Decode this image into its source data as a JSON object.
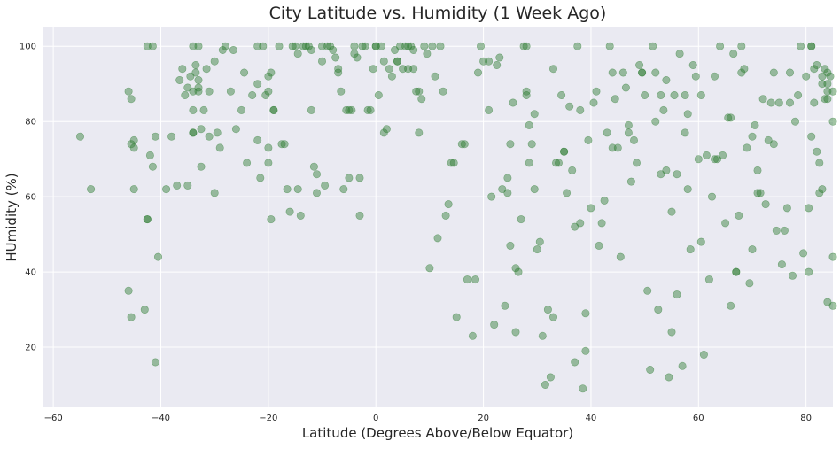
{
  "chart_data": {
    "type": "scatter",
    "title": "City Latitude vs. Humidity (1 Week Ago)",
    "xlabel": "Latitude (Degrees Above/Below Equator)",
    "ylabel": "HUmidity (%)",
    "xlim": [
      -62,
      85
    ],
    "ylim": [
      4,
      105
    ],
    "xticks": [
      -60,
      -40,
      -20,
      0,
      20,
      40,
      60,
      80
    ],
    "yticks": [
      20,
      40,
      60,
      80,
      100
    ],
    "grid": true,
    "background_color": "#EAEAF2",
    "marker_color": "#2E7D32",
    "marker_alpha": 0.45,
    "series": [
      {
        "points": [
          [
            -55,
            76
          ],
          [
            -53,
            62
          ],
          [
            -46,
            88
          ],
          [
            -45.5,
            86
          ],
          [
            -45.5,
            74
          ],
          [
            -45,
            73
          ],
          [
            -45,
            75
          ],
          [
            -45,
            62
          ],
          [
            -46,
            35
          ],
          [
            -45.5,
            28
          ],
          [
            -43,
            30
          ],
          [
            -42.5,
            100
          ],
          [
            -41.5,
            100
          ],
          [
            -42,
            71
          ],
          [
            -41.5,
            68
          ],
          [
            -41,
            76
          ],
          [
            -40.5,
            44
          ],
          [
            -41,
            16
          ],
          [
            -42.5,
            54
          ],
          [
            -42.5,
            54
          ],
          [
            -39,
            62
          ],
          [
            -38,
            76
          ],
          [
            -37,
            63
          ],
          [
            -36.5,
            91
          ],
          [
            -36,
            94
          ],
          [
            -35.5,
            87
          ],
          [
            -35,
            63
          ],
          [
            -35,
            89
          ],
          [
            -34.5,
            92
          ],
          [
            -34,
            100
          ],
          [
            -34,
            88
          ],
          [
            -34,
            83
          ],
          [
            -34,
            77
          ],
          [
            -34,
            77
          ],
          [
            -33.5,
            95
          ],
          [
            -33.5,
            93
          ],
          [
            -33,
            91
          ],
          [
            -33,
            89
          ],
          [
            -33,
            100
          ],
          [
            -33,
            88
          ],
          [
            -32.5,
            78
          ],
          [
            -32.5,
            68
          ],
          [
            -32,
            83
          ],
          [
            -31.5,
            94
          ],
          [
            -31,
            88
          ],
          [
            -31,
            76
          ],
          [
            -30,
            96
          ],
          [
            -30,
            61
          ],
          [
            -29.5,
            77
          ],
          [
            -29,
            73
          ],
          [
            -28.5,
            99
          ],
          [
            -28,
            100
          ],
          [
            -27,
            88
          ],
          [
            -26.5,
            99
          ],
          [
            -26,
            78
          ],
          [
            -25,
            83
          ],
          [
            -24.5,
            93
          ],
          [
            -24,
            69
          ],
          [
            -23,
            87
          ],
          [
            -22,
            100
          ],
          [
            -22,
            90
          ],
          [
            -22,
            75
          ],
          [
            -21.5,
            65
          ],
          [
            -21,
            100
          ],
          [
            -20.5,
            87
          ],
          [
            -20,
            88
          ],
          [
            -20,
            92
          ],
          [
            -19.5,
            93
          ],
          [
            -19,
            83
          ],
          [
            -19,
            83
          ],
          [
            -20,
            73
          ],
          [
            -20,
            69
          ],
          [
            -19.5,
            54
          ],
          [
            -18,
            100
          ],
          [
            -17.5,
            74
          ],
          [
            -17,
            74
          ],
          [
            -16.5,
            62
          ],
          [
            -16,
            56
          ],
          [
            -15.5,
            100
          ],
          [
            -15,
            100
          ],
          [
            -14.5,
            98
          ],
          [
            -14.5,
            62
          ],
          [
            -14,
            55
          ],
          [
            -13.5,
            100
          ],
          [
            -13,
            100
          ],
          [
            -12.5,
            100
          ],
          [
            -12,
            99
          ],
          [
            -12,
            83
          ],
          [
            -11.5,
            68
          ],
          [
            -11,
            66
          ],
          [
            -11,
            61
          ],
          [
            -10,
            100
          ],
          [
            -10,
            96
          ],
          [
            -9.5,
            63
          ],
          [
            -9,
            100
          ],
          [
            -8.5,
            100
          ],
          [
            -8,
            99
          ],
          [
            -7.5,
            97
          ],
          [
            -7,
            93
          ],
          [
            -7,
            94
          ],
          [
            -6.5,
            88
          ],
          [
            -6,
            62
          ],
          [
            -5.5,
            83
          ],
          [
            -5,
            65
          ],
          [
            -5,
            83
          ],
          [
            -4.5,
            83
          ],
          [
            -4,
            100
          ],
          [
            -4,
            98
          ],
          [
            -3.5,
            97
          ],
          [
            -3,
            65
          ],
          [
            -3,
            55
          ],
          [
            -2.5,
            100
          ],
          [
            -2,
            100
          ],
          [
            -1.5,
            83
          ],
          [
            -1,
            83
          ],
          [
            -0.5,
            94
          ],
          [
            0,
            100
          ],
          [
            0,
            100
          ],
          [
            0.5,
            87
          ],
          [
            1,
            100
          ],
          [
            1.5,
            96
          ],
          [
            1.5,
            77
          ],
          [
            2,
            78
          ],
          [
            2.5,
            94
          ],
          [
            3,
            92
          ],
          [
            3.5,
            99
          ],
          [
            4,
            96
          ],
          [
            4,
            96
          ],
          [
            4.5,
            100
          ],
          [
            5,
            94
          ],
          [
            5.5,
            100
          ],
          [
            6,
            100
          ],
          [
            6,
            94
          ],
          [
            6.5,
            100
          ],
          [
            7,
            99
          ],
          [
            7,
            94
          ],
          [
            7.5,
            88
          ],
          [
            8,
            88
          ],
          [
            8,
            77
          ],
          [
            8.5,
            86
          ],
          [
            9,
            100
          ],
          [
            9.5,
            98
          ],
          [
            10,
            41
          ],
          [
            10.5,
            100
          ],
          [
            11,
            92
          ],
          [
            11.5,
            49
          ],
          [
            12,
            100
          ],
          [
            12.5,
            88
          ],
          [
            13,
            55
          ],
          [
            13.5,
            58
          ],
          [
            14,
            69
          ],
          [
            14.5,
            69
          ],
          [
            15,
            28
          ],
          [
            16,
            74
          ],
          [
            16.5,
            74
          ],
          [
            17,
            38
          ],
          [
            18,
            23
          ],
          [
            18.5,
            38
          ],
          [
            19,
            93
          ],
          [
            19.5,
            100
          ],
          [
            20,
            96
          ],
          [
            21,
            96
          ],
          [
            21,
            83
          ],
          [
            21.5,
            60
          ],
          [
            22,
            26
          ],
          [
            22.5,
            95
          ],
          [
            23,
            97
          ],
          [
            23.5,
            62
          ],
          [
            24,
            31
          ],
          [
            24.5,
            61
          ],
          [
            24.5,
            65
          ],
          [
            25,
            47
          ],
          [
            25,
            74
          ],
          [
            25.5,
            85
          ],
          [
            26,
            41
          ],
          [
            26,
            24
          ],
          [
            26.5,
            40
          ],
          [
            27,
            54
          ],
          [
            27.5,
            100
          ],
          [
            28,
            88
          ],
          [
            28,
            100
          ],
          [
            28,
            87
          ],
          [
            28.5,
            79
          ],
          [
            28.5,
            69
          ],
          [
            29,
            74
          ],
          [
            29.5,
            62
          ],
          [
            29.5,
            82
          ],
          [
            30,
            46
          ],
          [
            30.5,
            48
          ],
          [
            31,
            23
          ],
          [
            31.5,
            10
          ],
          [
            32,
            30
          ],
          [
            32.5,
            12
          ],
          [
            33,
            94
          ],
          [
            33,
            28
          ],
          [
            33.5,
            69
          ],
          [
            34,
            69
          ],
          [
            34.5,
            87
          ],
          [
            35,
            72
          ],
          [
            35,
            72
          ],
          [
            35.5,
            61
          ],
          [
            36,
            84
          ],
          [
            36.5,
            67
          ],
          [
            37,
            16
          ],
          [
            37,
            52
          ],
          [
            37.5,
            100
          ],
          [
            38,
            53
          ],
          [
            38,
            83
          ],
          [
            38.5,
            9
          ],
          [
            39,
            29
          ],
          [
            39,
            19
          ],
          [
            39.5,
            75
          ],
          [
            40,
            57
          ],
          [
            40.5,
            85
          ],
          [
            41,
            88
          ],
          [
            41.5,
            47
          ],
          [
            42,
            53
          ],
          [
            42.5,
            59
          ],
          [
            43,
            77
          ],
          [
            43.5,
            100
          ],
          [
            44,
            73
          ],
          [
            44,
            93
          ],
          [
            44.5,
            86
          ],
          [
            45,
            73
          ],
          [
            45.5,
            44
          ],
          [
            46,
            93
          ],
          [
            46.5,
            89
          ],
          [
            47,
            77
          ],
          [
            47,
            79
          ],
          [
            47.5,
            64
          ],
          [
            48,
            75
          ],
          [
            48.5,
            69
          ],
          [
            49,
            95
          ],
          [
            49.5,
            93
          ],
          [
            49.5,
            93
          ],
          [
            50,
            87
          ],
          [
            50.5,
            35
          ],
          [
            51,
            14
          ],
          [
            51.5,
            100
          ],
          [
            52,
            93
          ],
          [
            52,
            80
          ],
          [
            52.5,
            30
          ],
          [
            53,
            66
          ],
          [
            53,
            87
          ],
          [
            53.5,
            83
          ],
          [
            54,
            91
          ],
          [
            54,
            67
          ],
          [
            54.5,
            12
          ],
          [
            55,
            24
          ],
          [
            55,
            56
          ],
          [
            55.5,
            87
          ],
          [
            56,
            34
          ],
          [
            56,
            66
          ],
          [
            56.5,
            98
          ],
          [
            57,
            15
          ],
          [
            57.5,
            87
          ],
          [
            57.5,
            77
          ],
          [
            58,
            62
          ],
          [
            58,
            82
          ],
          [
            58.5,
            46
          ],
          [
            59,
            95
          ],
          [
            59.5,
            92
          ],
          [
            60,
            70
          ],
          [
            60.5,
            87
          ],
          [
            60.5,
            48
          ],
          [
            61,
            18
          ],
          [
            61.5,
            71
          ],
          [
            62,
            38
          ],
          [
            62.5,
            60
          ],
          [
            63,
            92
          ],
          [
            63,
            70
          ],
          [
            63.5,
            70
          ],
          [
            64,
            100
          ],
          [
            64.5,
            71
          ],
          [
            65,
            53
          ],
          [
            65.5,
            81
          ],
          [
            66,
            31
          ],
          [
            66,
            81
          ],
          [
            66.5,
            98
          ],
          [
            67,
            40
          ],
          [
            67,
            40
          ],
          [
            67.5,
            55
          ],
          [
            68,
            93
          ],
          [
            68,
            100
          ],
          [
            68.5,
            94
          ],
          [
            69,
            73
          ],
          [
            69.5,
            37
          ],
          [
            70,
            76
          ],
          [
            70,
            46
          ],
          [
            70.5,
            79
          ],
          [
            71,
            67
          ],
          [
            71,
            61
          ],
          [
            71.5,
            61
          ],
          [
            72,
            86
          ],
          [
            72.5,
            58
          ],
          [
            73,
            75
          ],
          [
            73.5,
            85
          ],
          [
            74,
            74
          ],
          [
            74,
            93
          ],
          [
            74.5,
            51
          ],
          [
            75,
            85
          ],
          [
            75.5,
            42
          ],
          [
            76,
            51
          ],
          [
            76.5,
            57
          ],
          [
            77,
            93
          ],
          [
            77,
            85
          ],
          [
            77.5,
            39
          ],
          [
            78,
            80
          ],
          [
            78.5,
            87
          ],
          [
            79,
            100
          ],
          [
            79.5,
            45
          ],
          [
            80,
            92
          ],
          [
            80.5,
            40
          ],
          [
            81,
            100
          ],
          [
            81,
            100
          ],
          [
            81.5,
            94
          ],
          [
            82,
            72
          ],
          [
            82.5,
            61
          ],
          [
            83,
            90
          ],
          [
            83,
            62
          ],
          [
            83.5,
            94
          ],
          [
            84,
            93
          ],
          [
            84,
            32
          ],
          [
            84.5,
            92
          ],
          [
            85,
            31
          ],
          [
            85,
            44
          ],
          [
            85,
            88
          ],
          [
            85,
            80
          ],
          [
            84,
            86
          ],
          [
            84,
            88
          ],
          [
            84,
            90
          ],
          [
            83.5,
            86
          ],
          [
            83,
            92
          ],
          [
            82.5,
            69
          ],
          [
            82,
            95
          ],
          [
            81.5,
            85
          ],
          [
            81,
            76
          ],
          [
            80.5,
            57
          ]
        ]
      }
    ]
  }
}
